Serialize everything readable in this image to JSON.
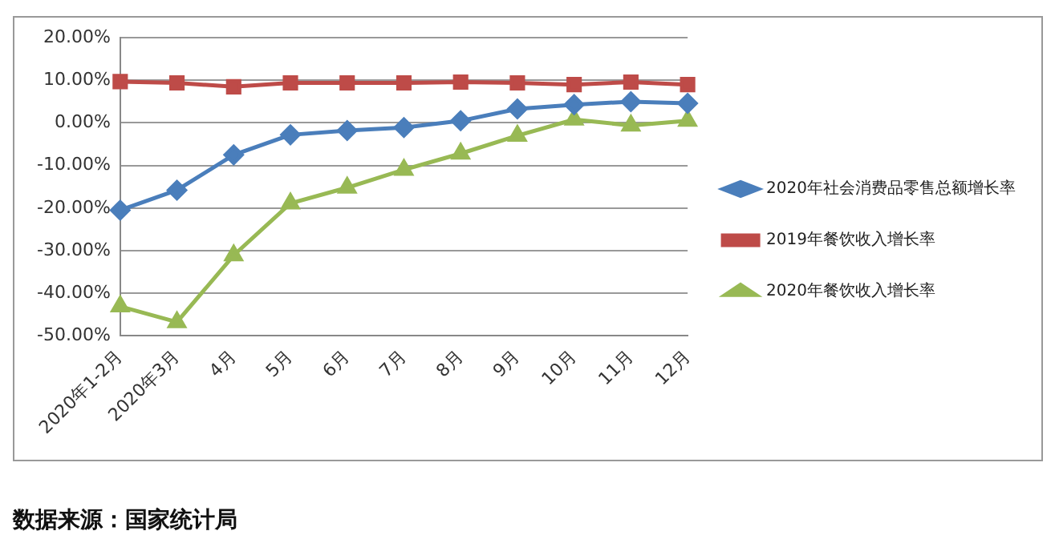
{
  "chart_data": {
    "type": "line",
    "categories": [
      "2020年1-2月",
      "2020年3月",
      "4月",
      "5月",
      "6月",
      "7月",
      "8月",
      "9月",
      "10月",
      "11月",
      "12月"
    ],
    "series": [
      {
        "name": "2020年社会消费品零售总额增长率",
        "color": "#4a7ebb",
        "marker": "diamond",
        "values": [
          -20.5,
          -15.8,
          -7.5,
          -2.8,
          -1.8,
          -1.1,
          0.5,
          3.3,
          4.3,
          5.0,
          4.6
        ]
      },
      {
        "name": "2019年餐饮收入增长率",
        "color": "#be4b48",
        "marker": "square",
        "values": [
          9.7,
          9.4,
          8.5,
          9.4,
          9.4,
          9.4,
          9.6,
          9.4,
          9.0,
          9.6,
          9.0
        ]
      },
      {
        "name": "2020年餐饮收入增长率",
        "color": "#98b954",
        "marker": "triangle",
        "values": [
          -43.1,
          -46.8,
          -31.1,
          -18.9,
          -15.2,
          -11.0,
          -7.2,
          -3.0,
          0.8,
          -0.6,
          0.5
        ]
      }
    ],
    "ylim": [
      -50,
      20
    ],
    "yticks": [
      {
        "value": -50,
        "label": "-50.00%"
      },
      {
        "value": -40,
        "label": "-40.00%"
      },
      {
        "value": -30,
        "label": "-30.00%"
      },
      {
        "value": -20,
        "label": "-20.00%"
      },
      {
        "value": -10,
        "label": "-10.00%"
      },
      {
        "value": 0,
        "label": "0.00%"
      },
      {
        "value": 10,
        "label": "10.00%"
      },
      {
        "value": 20,
        "label": "20.00%"
      }
    ],
    "grid": "y",
    "legend": "right",
    "annotations": [
      "数据来源：国家统计局"
    ]
  }
}
